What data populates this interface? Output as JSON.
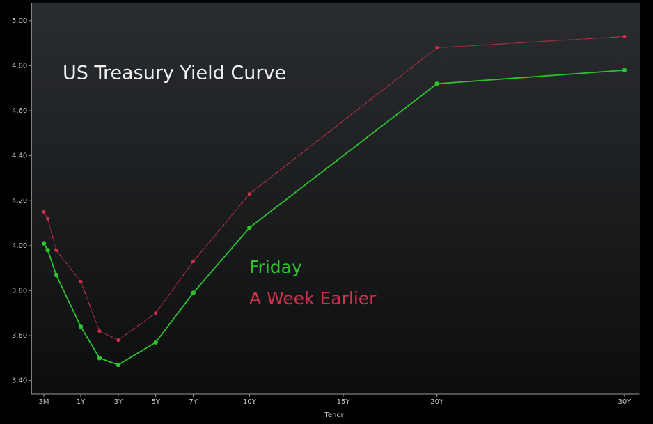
{
  "chart_data": {
    "type": "line",
    "title": "US Treasury Yield Curve",
    "x_label": "Tenor",
    "x": [
      0.25,
      0.33,
      0.5,
      1,
      2,
      3,
      5,
      7,
      10,
      20,
      30
    ],
    "series": [
      {
        "name": "Friday",
        "color": "#2ec42e",
        "values": [
          4.01,
          3.98,
          3.87,
          3.64,
          3.5,
          3.47,
          3.57,
          3.79,
          4.08,
          4.72,
          4.78
        ]
      },
      {
        "name": "A Week Earlier",
        "color": "#d0304c",
        "values": [
          4.15,
          4.12,
          3.98,
          3.84,
          3.62,
          3.58,
          3.7,
          3.93,
          4.23,
          4.88,
          4.93
        ]
      }
    ],
    "xlim": [
      0,
      30.8
    ],
    "xticks": [
      {
        "value": 0.25,
        "label": "3M"
      },
      {
        "value": 1,
        "label": "1Y"
      },
      {
        "value": 3,
        "label": "3Y"
      },
      {
        "value": 5,
        "label": "5Y"
      },
      {
        "value": 7,
        "label": "7Y"
      },
      {
        "value": 10,
        "label": "10Y"
      },
      {
        "value": 15,
        "label": "15Y"
      },
      {
        "value": 20,
        "label": "20Y"
      },
      {
        "value": 30,
        "label": "30Y"
      }
    ],
    "ylim": [
      3.34,
      5.08
    ],
    "yticks": [
      {
        "value": 3.4,
        "label": "3.40"
      },
      {
        "value": 3.6,
        "label": "3.60"
      },
      {
        "value": 3.8,
        "label": "3.80"
      },
      {
        "value": 4.0,
        "label": "4.00"
      },
      {
        "value": 4.2,
        "label": "4.20"
      },
      {
        "value": 4.4,
        "label": "4.40"
      },
      {
        "value": 4.6,
        "label": "4.60"
      },
      {
        "value": 4.8,
        "label": "4.80"
      },
      {
        "value": 5.0,
        "label": "5.00"
      }
    ]
  }
}
